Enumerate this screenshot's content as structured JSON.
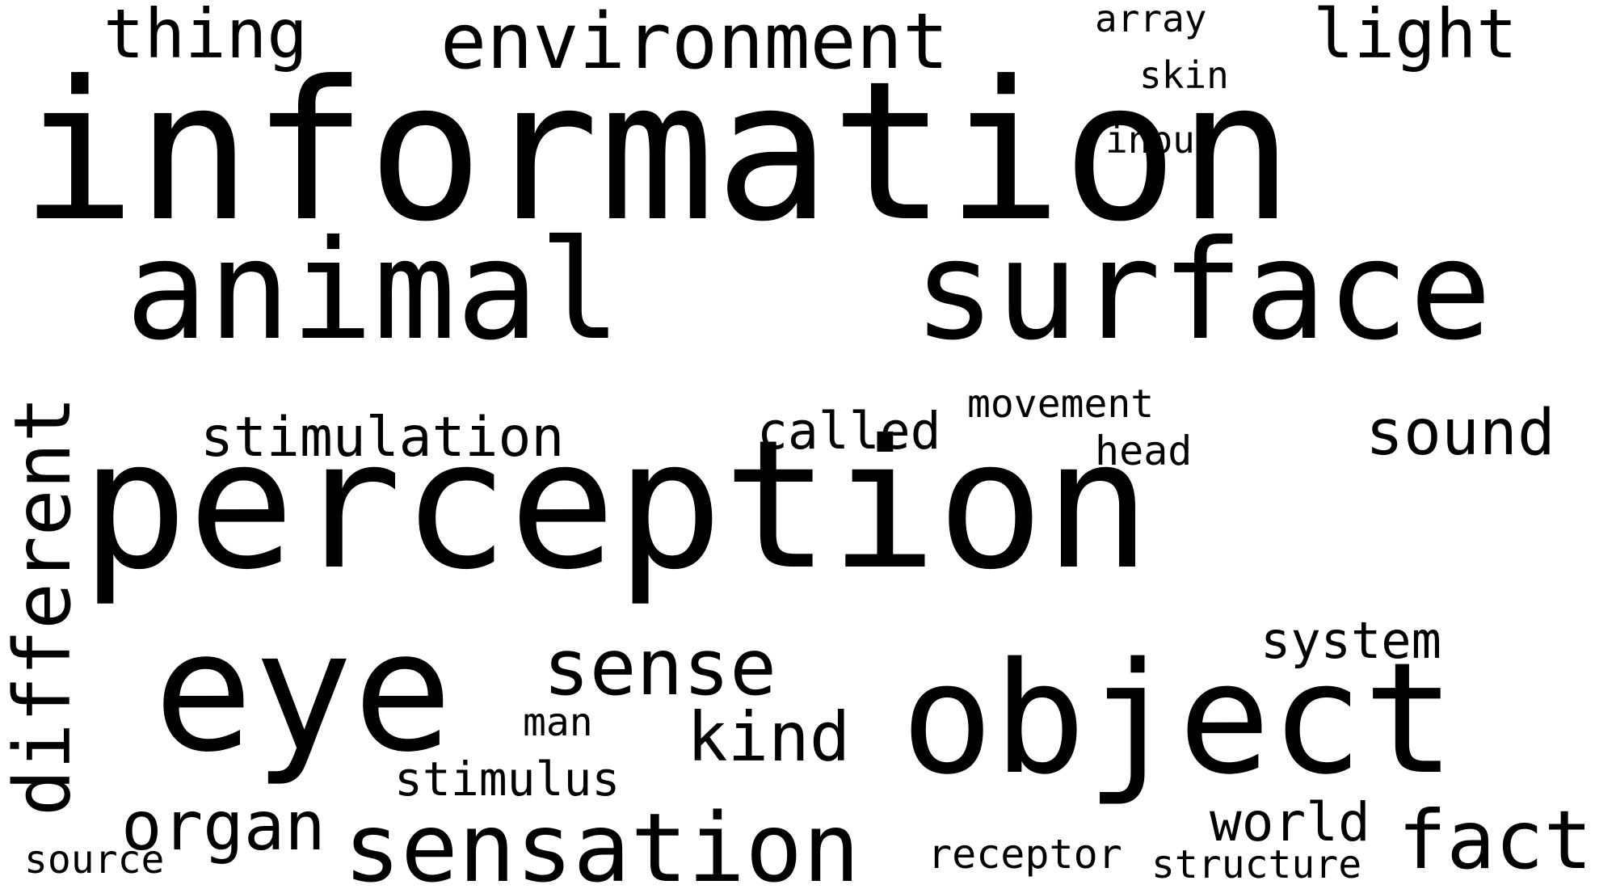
{
  "text_color": "#000000",
  "background_color": "#ffffff",
  "words": {
    "information": "information",
    "perception": "perception",
    "animal": "animal",
    "surface": "surface",
    "eye": "eye",
    "object": "object",
    "sensation": "sensation",
    "different": "different",
    "environment": "environment",
    "sense": "sense",
    "thing": "thing",
    "light": "light",
    "stimulation": "stimulation",
    "sound": "sound",
    "called": "called",
    "kind": "kind",
    "organ": "organ",
    "fact": "fact",
    "world": "world",
    "system": "system",
    "stimulus": "stimulus",
    "movement": "movement",
    "head": "head",
    "receptor": "receptor",
    "structure": "structure",
    "man": "man",
    "source": "source",
    "array": "array",
    "skin": "skin",
    "input": "input"
  }
}
